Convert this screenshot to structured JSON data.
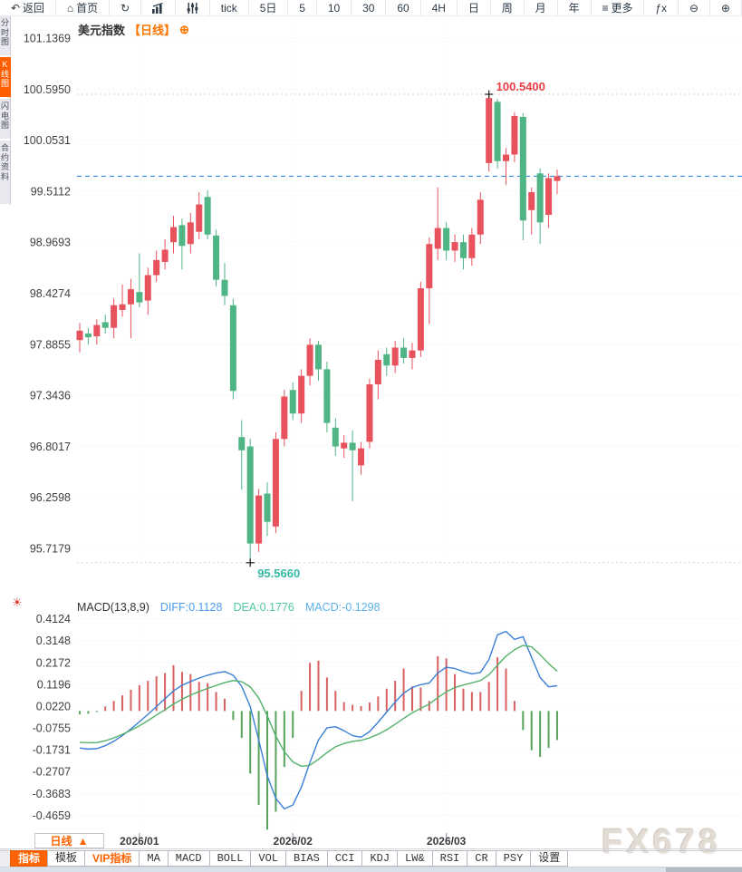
{
  "toolbar": {
    "items": [
      {
        "name": "back",
        "label": "返回",
        "icon": "back-arrow"
      },
      {
        "name": "home",
        "label": "首页",
        "icon": "home"
      },
      {
        "name": "refresh",
        "label": "",
        "icon": "refresh"
      },
      {
        "name": "chart-style",
        "label": "",
        "icon": "bar-chart"
      },
      {
        "name": "indicator-settings",
        "label": "",
        "icon": "sliders"
      },
      {
        "name": "tick",
        "label": "tick"
      },
      {
        "name": "5d",
        "label": "5日"
      },
      {
        "name": "m5",
        "label": "5"
      },
      {
        "name": "m10",
        "label": "10"
      },
      {
        "name": "m30",
        "label": "30"
      },
      {
        "name": "m60",
        "label": "60"
      },
      {
        "name": "h4",
        "label": "4H"
      },
      {
        "name": "day",
        "label": "日"
      },
      {
        "name": "week",
        "label": "周"
      },
      {
        "name": "month",
        "label": "月"
      },
      {
        "name": "year",
        "label": "年"
      },
      {
        "name": "more",
        "label": "更多",
        "icon": "menu"
      },
      {
        "name": "fx",
        "label": "ƒx"
      },
      {
        "name": "zoom-out",
        "label": "",
        "icon": "zoom-out"
      },
      {
        "name": "zoom-in",
        "label": "",
        "icon": "zoom-in"
      }
    ]
  },
  "sidebar": {
    "tabs": [
      {
        "name": "time-chart",
        "label": "分时图",
        "active": false
      },
      {
        "name": "kline-chart",
        "label": "K线图",
        "active": true
      },
      {
        "name": "lightning-chart",
        "label": "闪电图",
        "active": false
      },
      {
        "name": "contract-info",
        "label": "合约资料",
        "active": false
      }
    ]
  },
  "chart_header": {
    "symbol": "美元指数",
    "period": "【日线】",
    "add": "⊕"
  },
  "macd_header": {
    "name": "MACD(13,8,9)",
    "diff": "DIFF:0.1128",
    "dea": "DEA:0.1776",
    "macd": "MACD:-0.1298"
  },
  "bottom": {
    "period": {
      "label": "日线",
      "arrow": "▲"
    },
    "tabs": [
      {
        "name": "indicator",
        "label": "指标",
        "state": "active"
      },
      {
        "name": "template",
        "label": "模板",
        "state": "normal"
      },
      {
        "name": "vip-indicator",
        "label": "VIP指标",
        "state": "vip"
      },
      {
        "name": "ma",
        "label": "MA",
        "state": "normal"
      },
      {
        "name": "macd",
        "label": "MACD",
        "state": "normal"
      },
      {
        "name": "boll",
        "label": "BOLL",
        "state": "normal"
      },
      {
        "name": "vol",
        "label": "VOL",
        "state": "normal"
      },
      {
        "name": "bias",
        "label": "BIAS",
        "state": "normal"
      },
      {
        "name": "cci",
        "label": "CCI",
        "state": "normal"
      },
      {
        "name": "kdj",
        "label": "KDJ",
        "state": "normal"
      },
      {
        "name": "lw",
        "label": "LW&",
        "state": "normal"
      },
      {
        "name": "rsi",
        "label": "RSI",
        "state": "normal"
      },
      {
        "name": "cr",
        "label": "CR",
        "state": "normal"
      },
      {
        "name": "psy",
        "label": "PSY",
        "state": "normal"
      },
      {
        "name": "settings",
        "label": "设置",
        "state": "normal"
      }
    ]
  },
  "watermark": "FX678",
  "colors": {
    "up": "#e7525c",
    "down": "#4fb585",
    "hist_pos": "#d96060",
    "hist_neg": "#57a35c",
    "diff_line": "#3b7fd6",
    "dea_line": "#53b16b",
    "price_line": "#1f7ce8",
    "accent": "#ff6200",
    "high_label": "#e83d46",
    "low_label": "#34b9a4"
  },
  "chart_data": [
    {
      "type": "candlestick",
      "symbol": "美元指数",
      "period": "日线",
      "y_ticks": [
        "101.1369",
        "100.5950",
        "100.0531",
        "99.5112",
        "98.9693",
        "98.4274",
        "97.8855",
        "97.3436",
        "96.8017",
        "96.2598",
        "95.7179"
      ],
      "x_month_labels": [
        {
          "label": "2026/01",
          "index": 7
        },
        {
          "label": "2026/02",
          "index": 25
        },
        {
          "label": "2026/03",
          "index": 43
        }
      ],
      "high_annotation": {
        "label": "100.5400",
        "price": 100.54,
        "index": 48
      },
      "low_annotation": {
        "label": "95.5660",
        "price": 95.566,
        "index": 20
      },
      "last_price": 99.67,
      "candles": [
        [
          97.93,
          98.11,
          97.8,
          98.03
        ],
        [
          98.0,
          98.06,
          97.88,
          97.96
        ],
        [
          97.97,
          98.15,
          97.88,
          98.09
        ],
        [
          98.12,
          98.2,
          98.0,
          98.06
        ],
        [
          98.06,
          98.37,
          97.95,
          98.3
        ],
        [
          98.25,
          98.52,
          98.18,
          98.31
        ],
        [
          98.31,
          98.58,
          97.95,
          98.47
        ],
        [
          98.44,
          98.85,
          98.28,
          98.33
        ],
        [
          98.35,
          98.7,
          98.2,
          98.62
        ],
        [
          98.62,
          98.88,
          98.55,
          98.78
        ],
        [
          98.76,
          99.0,
          98.68,
          98.89
        ],
        [
          98.97,
          99.25,
          98.85,
          99.13
        ],
        [
          99.15,
          99.22,
          98.68,
          98.93
        ],
        [
          98.95,
          99.28,
          98.85,
          99.18
        ],
        [
          99.08,
          99.5,
          99.0,
          99.37
        ],
        [
          99.45,
          99.52,
          99.0,
          99.05
        ],
        [
          99.04,
          99.1,
          98.5,
          98.57
        ],
        [
          98.57,
          98.75,
          98.3,
          98.4
        ],
        [
          98.3,
          98.37,
          97.3,
          97.39
        ],
        [
          96.9,
          97.08,
          96.34,
          96.76
        ],
        [
          96.8,
          96.88,
          95.566,
          95.77
        ],
        [
          95.77,
          96.35,
          95.68,
          96.28
        ],
        [
          96.3,
          96.42,
          95.85,
          96.0
        ],
        [
          95.95,
          96.95,
          95.88,
          96.88
        ],
        [
          96.88,
          97.4,
          96.8,
          97.33
        ],
        [
          97.4,
          97.48,
          97.08,
          97.15
        ],
        [
          97.15,
          97.62,
          97.05,
          97.55
        ],
        [
          97.55,
          97.95,
          97.45,
          97.88
        ],
        [
          97.88,
          97.92,
          97.5,
          97.62
        ],
        [
          97.62,
          97.7,
          96.95,
          97.05
        ],
        [
          97.0,
          97.1,
          96.7,
          96.8
        ],
        [
          96.78,
          96.92,
          96.68,
          96.84
        ],
        [
          96.84,
          96.97,
          96.22,
          96.76
        ],
        [
          96.6,
          96.85,
          96.5,
          96.78
        ],
        [
          96.85,
          97.52,
          96.78,
          97.46
        ],
        [
          97.46,
          97.82,
          97.3,
          97.72
        ],
        [
          97.78,
          97.85,
          97.55,
          97.66
        ],
        [
          97.66,
          97.92,
          97.58,
          97.85
        ],
        [
          97.85,
          97.95,
          97.68,
          97.74
        ],
        [
          97.74,
          97.9,
          97.62,
          97.82
        ],
        [
          97.82,
          98.55,
          97.75,
          98.48
        ],
        [
          98.48,
          99.02,
          98.1,
          98.95
        ],
        [
          98.9,
          99.55,
          98.78,
          99.12
        ],
        [
          99.12,
          99.18,
          98.78,
          98.88
        ],
        [
          98.88,
          99.05,
          98.76,
          98.97
        ],
        [
          98.97,
          99.05,
          98.68,
          98.8
        ],
        [
          98.8,
          99.12,
          98.72,
          99.05
        ],
        [
          99.05,
          99.5,
          98.95,
          99.42
        ],
        [
          99.81,
          100.54,
          99.72,
          100.5
        ],
        [
          100.46,
          100.49,
          99.75,
          99.83
        ],
        [
          99.83,
          99.97,
          99.58,
          99.9
        ],
        [
          99.9,
          100.35,
          99.82,
          100.31
        ],
        [
          100.3,
          100.34,
          98.99,
          99.2
        ],
        [
          99.31,
          99.55,
          99.05,
          99.5
        ],
        [
          99.7,
          99.75,
          98.95,
          99.18
        ],
        [
          99.26,
          99.7,
          99.12,
          99.65
        ],
        [
          99.62,
          99.74,
          99.48,
          99.67
        ]
      ]
    },
    {
      "type": "macd",
      "title": "MACD(13,8,9)",
      "diff": 0.1128,
      "dea": 0.1776,
      "macd": -0.1298,
      "y_ticks": [
        "0.4124",
        "0.3148",
        "0.2172",
        "0.1196",
        "0.0220",
        "-0.0755",
        "-0.1731",
        "-0.2707",
        "-0.3683",
        "-0.4659"
      ],
      "histogram": [
        -0.015,
        -0.012,
        -0.005,
        0.02,
        0.045,
        0.07,
        0.095,
        0.115,
        0.135,
        0.155,
        0.17,
        0.205,
        0.175,
        0.165,
        0.13,
        0.125,
        0.085,
        0.055,
        -0.04,
        -0.12,
        -0.28,
        -0.42,
        -0.53,
        -0.45,
        -0.25,
        -0.12,
        0.09,
        0.215,
        0.225,
        0.15,
        0.09,
        0.04,
        0.028,
        0.022,
        0.038,
        0.065,
        0.1,
        0.135,
        0.19,
        0.11,
        0.105,
        0.045,
        0.245,
        0.235,
        0.165,
        0.1,
        0.085,
        0.085,
        0.13,
        0.24,
        0.19,
        0.045,
        -0.085,
        -0.175,
        -0.205,
        -0.165,
        -0.13
      ],
      "diff_line": [
        -0.165,
        -0.17,
        -0.168,
        -0.155,
        -0.135,
        -0.11,
        -0.08,
        -0.048,
        -0.015,
        0.02,
        0.055,
        0.09,
        0.115,
        0.132,
        0.147,
        0.16,
        0.17,
        0.176,
        0.16,
        0.11,
        0.02,
        -0.13,
        -0.29,
        -0.39,
        -0.437,
        -0.42,
        -0.34,
        -0.23,
        -0.13,
        -0.075,
        -0.07,
        -0.088,
        -0.11,
        -0.117,
        -0.092,
        -0.05,
        -0.005,
        0.04,
        0.08,
        0.105,
        0.118,
        0.125,
        0.17,
        0.196,
        0.19,
        0.176,
        0.166,
        0.172,
        0.23,
        0.34,
        0.356,
        0.32,
        0.332,
        0.24,
        0.15,
        0.108,
        0.113
      ],
      "dea_line": [
        -0.14,
        -0.142,
        -0.141,
        -0.133,
        -0.12,
        -0.104,
        -0.086,
        -0.066,
        -0.043,
        -0.018,
        0.006,
        0.031,
        0.053,
        0.071,
        0.087,
        0.101,
        0.114,
        0.127,
        0.136,
        0.131,
        0.108,
        0.058,
        -0.022,
        -0.112,
        -0.182,
        -0.227,
        -0.247,
        -0.242,
        -0.216,
        -0.186,
        -0.16,
        -0.145,
        -0.136,
        -0.131,
        -0.12,
        -0.104,
        -0.084,
        -0.059,
        -0.033,
        -0.008,
        0.012,
        0.031,
        0.06,
        0.086,
        0.105,
        0.116,
        0.126,
        0.136,
        0.162,
        0.205,
        0.245,
        0.274,
        0.293,
        0.287,
        0.252,
        0.212,
        0.178
      ]
    }
  ]
}
